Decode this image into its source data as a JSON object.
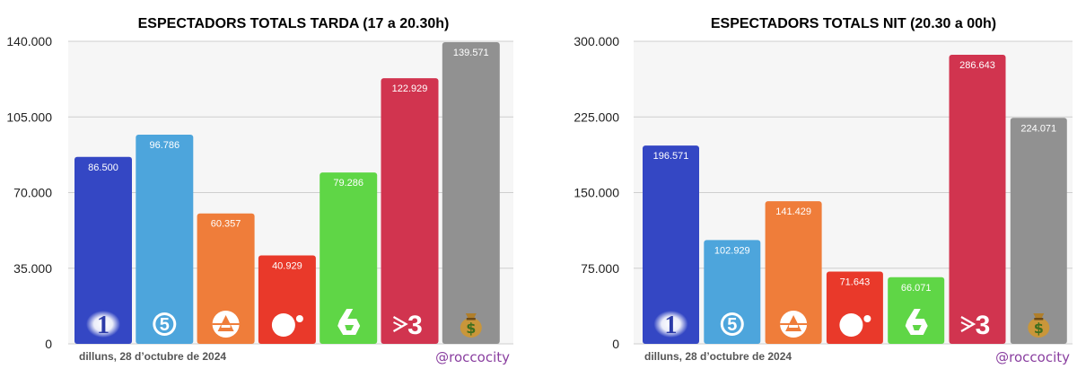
{
  "footer": {
    "date_text": "dilluns, 28 d’octubre de 2024",
    "credit": "@roccocity"
  },
  "colors": {
    "background": "#ffffff",
    "plot_bg": "#f6f6f6",
    "grid": "#cfcfcf",
    "credit_text": "#8a3fa0",
    "label_text": "#ffffff",
    "channel_1": "#3447c4",
    "channel_5": "#4da5dc",
    "channel_a3": "#ef7d3a",
    "channel_4": "#e9392a",
    "channel_6": "#5fd646",
    "channel_tv3": "#d1344f",
    "channel_money": "#919191"
  },
  "chart_data": [
    {
      "type": "bar",
      "title": "ESPECTADORS TOTALS TARDA (17 a 20.30h)",
      "categories": [
        "1",
        "5",
        "A3",
        "4",
        "6",
        "3",
        "money"
      ],
      "category_icons": [
        "la1-logo-icon",
        "telecinco-logo-icon",
        "antena3-logo-icon",
        "cuatro-logo-icon",
        "lasexta-logo-icon",
        "tv3-logo-icon",
        "money-bag-icon"
      ],
      "values": [
        86500,
        96786,
        60357,
        40929,
        79286,
        122929,
        139571
      ],
      "value_labels": [
        "86.500",
        "96.786",
        "60.357",
        "40.929",
        "79.286",
        "122.929",
        "139.571"
      ],
      "ylim": [
        0,
        140000
      ],
      "yticks": [
        0,
        35000,
        70000,
        105000,
        140000
      ],
      "ytick_labels": [
        "0",
        "35.000",
        "70.000",
        "105.000",
        "140.000"
      ],
      "grid": true,
      "xlabel": "",
      "ylabel": ""
    },
    {
      "type": "bar",
      "title": "ESPECTADORS TOTALS NIT (20.30 a 00h)",
      "categories": [
        "1",
        "5",
        "A3",
        "4",
        "6",
        "3",
        "money"
      ],
      "category_icons": [
        "la1-logo-icon",
        "telecinco-logo-icon",
        "antena3-logo-icon",
        "cuatro-logo-icon",
        "lasexta-logo-icon",
        "tv3-logo-icon",
        "money-bag-icon"
      ],
      "values": [
        196571,
        102929,
        141429,
        71643,
        66071,
        286643,
        224071
      ],
      "value_labels": [
        "196.571",
        "102.929",
        "141.429",
        "71.643",
        "66.071",
        "286.643",
        "224.071"
      ],
      "ylim": [
        0,
        300000
      ],
      "yticks": [
        0,
        75000,
        150000,
        225000,
        300000
      ],
      "ytick_labels": [
        "0",
        "75.000",
        "150.000",
        "225.000",
        "300.000"
      ],
      "grid": true,
      "xlabel": "",
      "ylabel": ""
    }
  ]
}
